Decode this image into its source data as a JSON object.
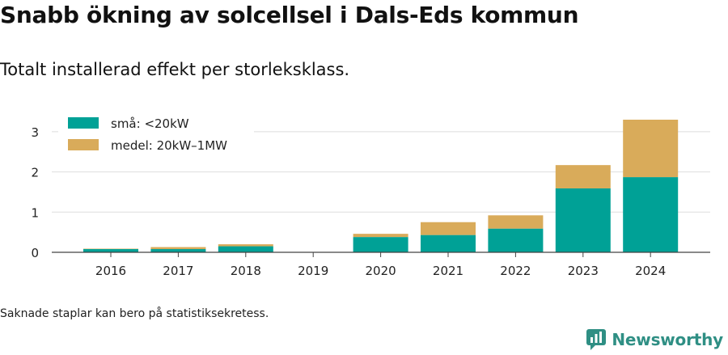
{
  "header": {
    "title": "Snabb ökning av solcellsel i Dals-Eds kommun",
    "subtitle": "Totalt installerad effekt per storleksklass."
  },
  "footer": {
    "note": "Saknade staplar kan bero på statistiksekretess.",
    "brand": "Newsworthy",
    "brand_icon": "chart-bubble-logo",
    "brand_color": "#2f8f84"
  },
  "chart_data": {
    "type": "bar",
    "stacked": true,
    "categories": [
      "2016",
      "2017",
      "2018",
      "2019",
      "2020",
      "2021",
      "2022",
      "2023",
      "2024"
    ],
    "series": [
      {
        "name": "små: <20kW",
        "color": "#00a196",
        "values": [
          0.08,
          0.08,
          0.15,
          0,
          0.38,
          0.43,
          0.59,
          1.59,
          1.87
        ]
      },
      {
        "name": "medel: 20kW–1MW",
        "color": "#d9ab5a",
        "values": [
          0.01,
          0.05,
          0.05,
          0,
          0.08,
          0.32,
          0.33,
          0.58,
          1.43
        ]
      }
    ],
    "ylim": [
      0,
      3.3
    ],
    "yticks": [
      0,
      1,
      2,
      3
    ],
    "xlabel": "",
    "ylabel": "",
    "grid": true,
    "legend_position": "top-left"
  }
}
